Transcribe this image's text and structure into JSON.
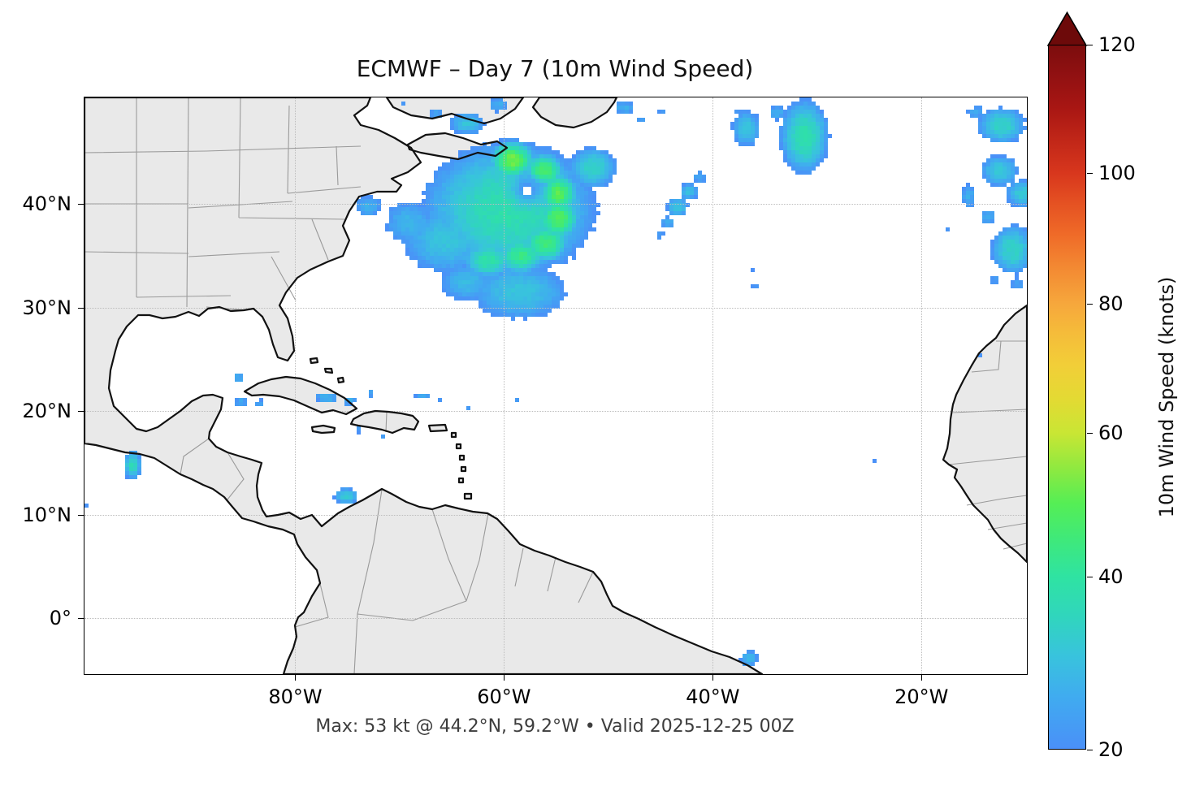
{
  "title": "ECMWF – Day 7 (10m Wind Speed)",
  "caption": "Max: 53 kt @ 44.2°N, 59.2°W • Valid 2025-12-25 00Z",
  "axes": {
    "lon_range": [
      -100.2,
      -9.9
    ],
    "lat_range": [
      -5.4,
      50.3
    ],
    "x_ticks": [
      {
        "label": "80°W",
        "lon": -80
      },
      {
        "label": "60°W",
        "lon": -60
      },
      {
        "label": "40°W",
        "lon": -40
      },
      {
        "label": "20°W",
        "lon": -20
      }
    ],
    "y_ticks": [
      {
        "label": "40°N",
        "lat": 40
      },
      {
        "label": "30°N",
        "lat": 30
      },
      {
        "label": "20°N",
        "lat": 20
      },
      {
        "label": "10°N",
        "lat": 10
      },
      {
        "label": "0°",
        "lat": 0
      }
    ],
    "grid": true
  },
  "map_style": {
    "land_color": "#e9e9e9",
    "coast_color": "#111111",
    "border_color": "#9a9a9a",
    "grid_color": "#bdbdbd",
    "ocean_color": "#ffffff"
  },
  "colorbar": {
    "label": "10m Wind Speed (knots)",
    "min": 20,
    "max": 120,
    "extend": "max",
    "arrow_color": "#6d0a0a",
    "ticks": [
      {
        "label": "20",
        "f": 0.0
      },
      {
        "label": "40",
        "f": 0.245
      },
      {
        "label": "60",
        "f": 0.449
      },
      {
        "label": "80",
        "f": 0.633
      },
      {
        "label": "100",
        "f": 0.818
      },
      {
        "label": "120",
        "f": 1.0
      }
    ],
    "stops": [
      {
        "v": 20,
        "c": "#4a90f8",
        "f": 0.0
      },
      {
        "v": 25,
        "c": "#40abf0",
        "f": 0.073
      },
      {
        "v": 30,
        "c": "#38c4dc",
        "f": 0.134
      },
      {
        "v": 35,
        "c": "#30d6bc",
        "f": 0.19
      },
      {
        "v": 40,
        "c": "#2fe3a2",
        "f": 0.245
      },
      {
        "v": 45,
        "c": "#3fe97a",
        "f": 0.298
      },
      {
        "v": 50,
        "c": "#55ee55",
        "f": 0.349
      },
      {
        "v": 55,
        "c": "#8fe940",
        "f": 0.399
      },
      {
        "v": 60,
        "c": "#c9e634",
        "f": 0.449
      },
      {
        "v": 65,
        "c": "#e3da33",
        "f": 0.497
      },
      {
        "v": 70,
        "c": "#f2ce38",
        "f": 0.546
      },
      {
        "v": 75,
        "c": "#f5bb3a",
        "f": 0.593
      },
      {
        "v": 80,
        "c": "#f6a73c",
        "f": 0.633
      },
      {
        "v": 85,
        "c": "#f38832",
        "f": 0.686
      },
      {
        "v": 90,
        "c": "#ef6a28",
        "f": 0.732
      },
      {
        "v": 95,
        "c": "#e45022",
        "f": 0.778
      },
      {
        "v": 100,
        "c": "#d8371d",
        "f": 0.818
      },
      {
        "v": 105,
        "c": "#c02618",
        "f": 0.867
      },
      {
        "v": 110,
        "c": "#a81613",
        "f": 0.912
      },
      {
        "v": 115,
        "c": "#921112",
        "f": 0.956
      },
      {
        "v": 120,
        "c": "#7c0d0d",
        "f": 1.0
      }
    ]
  },
  "chart_data": {
    "type": "heatmap",
    "variable": "10m Wind Speed",
    "units": "knots",
    "model": "ECMWF",
    "lead": "Day 7",
    "valid": "2025-12-25 00Z",
    "threshold_kt": 20,
    "max_point": {
      "value_kt": 53,
      "lat": 44.2,
      "lon": -59.2
    },
    "features": [
      {
        "lon": -59.5,
        "lat": 39.5,
        "sx": 7.5,
        "sy": 5.8,
        "peak": 38
      },
      {
        "lon": -59.2,
        "lat": 44.2,
        "sx": 1.7,
        "sy": 1.5,
        "peak": 53
      },
      {
        "lon": -56.2,
        "lat": 43.2,
        "sx": 1.6,
        "sy": 1.4,
        "peak": 48
      },
      {
        "lon": -54.8,
        "lat": 41.0,
        "sx": 1.5,
        "sy": 1.6,
        "peak": 50
      },
      {
        "lon": -54.8,
        "lat": 38.6,
        "sx": 1.6,
        "sy": 1.6,
        "peak": 50
      },
      {
        "lon": -56.0,
        "lat": 36.2,
        "sx": 1.8,
        "sy": 1.5,
        "peak": 46
      },
      {
        "lon": -58.4,
        "lat": 35.0,
        "sx": 2.0,
        "sy": 1.5,
        "peak": 43
      },
      {
        "lon": -61.5,
        "lat": 34.6,
        "sx": 2.2,
        "sy": 1.6,
        "peak": 39
      },
      {
        "lon": -65.5,
        "lat": 36.5,
        "sx": 4.5,
        "sy": 3.5,
        "peak": 30
      },
      {
        "lon": -69.0,
        "lat": 38.2,
        "sx": 3.0,
        "sy": 2.6,
        "peak": 27
      },
      {
        "lon": -73.0,
        "lat": 39.8,
        "sx": 1.6,
        "sy": 1.4,
        "peak": 26
      },
      {
        "lon": -63.5,
        "lat": 32.5,
        "sx": 3.0,
        "sy": 2.2,
        "peak": 28
      },
      {
        "lon": -58.5,
        "lat": 31.5,
        "sx": 5.0,
        "sy": 2.9,
        "peak": 30
      },
      {
        "lon": -51.5,
        "lat": 43.5,
        "sx": 2.2,
        "sy": 1.9,
        "peak": 34
      },
      {
        "lon": -57.8,
        "lat": 41.3,
        "sx": 1.05,
        "sy": 1.0,
        "peak": 14,
        "neg": true
      },
      {
        "lon": -57.8,
        "lat": 41.3,
        "sx": 0.3,
        "sy": 0.3,
        "peak": 9,
        "neg": true
      },
      {
        "lon": -63.5,
        "lat": 47.8,
        "sx": 1.8,
        "sy": 1.2,
        "peak": 30
      },
      {
        "lon": -66.5,
        "lat": 48.8,
        "sx": 1.0,
        "sy": 0.8,
        "peak": 24
      },
      {
        "lon": -60.5,
        "lat": 49.6,
        "sx": 1.2,
        "sy": 0.9,
        "peak": 26
      },
      {
        "lon": -69.5,
        "lat": 49.6,
        "sx": 0.5,
        "sy": 0.5,
        "peak": 22
      },
      {
        "lon": -48.5,
        "lat": 49.3,
        "sx": 1.3,
        "sy": 0.8,
        "peak": 26
      },
      {
        "lon": -46.8,
        "lat": 48.2,
        "sx": 0.7,
        "sy": 0.6,
        "peak": 23
      },
      {
        "lon": -44.9,
        "lat": 48.9,
        "sx": 0.6,
        "sy": 0.5,
        "peak": 22
      },
      {
        "lon": -43.7,
        "lat": 47.9,
        "sx": 0.5,
        "sy": 0.4,
        "peak": 21
      },
      {
        "lon": -37.6,
        "lat": 48.8,
        "sx": 0.6,
        "sy": 0.5,
        "peak": 23
      },
      {
        "lon": -31.2,
        "lat": 46.5,
        "sx": 2.1,
        "sy": 3.2,
        "peak": 38
      },
      {
        "lon": -33.8,
        "lat": 48.8,
        "sx": 1.1,
        "sy": 0.9,
        "peak": 26
      },
      {
        "lon": -36.8,
        "lat": 47.3,
        "sx": 1.5,
        "sy": 1.9,
        "peak": 30
      },
      {
        "lon": -41.3,
        "lat": 42.6,
        "sx": 0.9,
        "sy": 0.8,
        "peak": 25
      },
      {
        "lon": -42.3,
        "lat": 41.2,
        "sx": 1.0,
        "sy": 0.9,
        "peak": 29
      },
      {
        "lon": -43.4,
        "lat": 39.7,
        "sx": 1.1,
        "sy": 1.0,
        "peak": 31
      },
      {
        "lon": -44.3,
        "lat": 38.2,
        "sx": 0.9,
        "sy": 0.8,
        "peak": 26
      },
      {
        "lon": -45.0,
        "lat": 37.0,
        "sx": 0.7,
        "sy": 0.6,
        "peak": 23
      },
      {
        "lon": -36.3,
        "lat": 33.5,
        "sx": 0.5,
        "sy": 0.5,
        "peak": 22
      },
      {
        "lon": -35.9,
        "lat": 32.0,
        "sx": 0.5,
        "sy": 0.5,
        "peak": 23
      },
      {
        "lon": -30.3,
        "lat": 40.1,
        "sx": 0.4,
        "sy": 0.4,
        "peak": 21
      },
      {
        "lon": -12.3,
        "lat": 47.6,
        "sx": 2.2,
        "sy": 1.7,
        "peak": 34
      },
      {
        "lon": -14.8,
        "lat": 48.9,
        "sx": 1.2,
        "sy": 0.8,
        "peak": 25
      },
      {
        "lon": -12.5,
        "lat": 43.2,
        "sx": 1.9,
        "sy": 1.6,
        "peak": 31
      },
      {
        "lon": -10.4,
        "lat": 41.0,
        "sx": 1.6,
        "sy": 1.4,
        "peak": 31
      },
      {
        "lon": -15.5,
        "lat": 40.8,
        "sx": 0.9,
        "sy": 1.5,
        "peak": 26
      },
      {
        "lon": -11.3,
        "lat": 35.6,
        "sx": 2.0,
        "sy": 2.3,
        "peak": 34
      },
      {
        "lon": -13.6,
        "lat": 38.8,
        "sx": 1.0,
        "sy": 1.0,
        "peak": 26
      },
      {
        "lon": -17.5,
        "lat": 37.5,
        "sx": 0.5,
        "sy": 0.5,
        "peak": 22
      },
      {
        "lon": -13.0,
        "lat": 32.7,
        "sx": 0.8,
        "sy": 0.8,
        "peak": 23
      },
      {
        "lon": -10.8,
        "lat": 32.3,
        "sx": 0.9,
        "sy": 0.9,
        "peak": 24
      },
      {
        "lon": -14.4,
        "lat": 25.5,
        "sx": 0.35,
        "sy": 0.35,
        "peak": 21
      },
      {
        "lon": -85.5,
        "lat": 23.2,
        "sx": 0.7,
        "sy": 0.7,
        "peak": 26
      },
      {
        "lon": -85.2,
        "lat": 20.9,
        "sx": 0.9,
        "sy": 0.7,
        "peak": 25
      },
      {
        "lon": -83.4,
        "lat": 20.7,
        "sx": 0.6,
        "sy": 0.6,
        "peak": 24
      },
      {
        "lon": -77.0,
        "lat": 21.3,
        "sx": 1.3,
        "sy": 0.7,
        "peak": 27
      },
      {
        "lon": -74.8,
        "lat": 21.0,
        "sx": 0.9,
        "sy": 0.6,
        "peak": 26
      },
      {
        "lon": -72.8,
        "lat": 21.7,
        "sx": 0.6,
        "sy": 0.6,
        "peak": 24
      },
      {
        "lon": -67.8,
        "lat": 21.5,
        "sx": 1.0,
        "sy": 0.5,
        "peak": 25
      },
      {
        "lon": -66.0,
        "lat": 21.2,
        "sx": 0.5,
        "sy": 0.5,
        "peak": 23
      },
      {
        "lon": -74.0,
        "lat": 18.2,
        "sx": 0.6,
        "sy": 0.6,
        "peak": 23
      },
      {
        "lon": -71.6,
        "lat": 17.4,
        "sx": 0.5,
        "sy": 0.5,
        "peak": 23
      },
      {
        "lon": -63.5,
        "lat": 20.3,
        "sx": 0.4,
        "sy": 0.4,
        "peak": 22
      },
      {
        "lon": -61.2,
        "lat": 20.5,
        "sx": 0.4,
        "sy": 0.4,
        "peak": 21
      },
      {
        "lon": -58.8,
        "lat": 21.2,
        "sx": 0.5,
        "sy": 0.5,
        "peak": 22
      },
      {
        "lon": -56.9,
        "lat": 21.0,
        "sx": 0.4,
        "sy": 0.4,
        "peak": 21
      },
      {
        "lon": -75.1,
        "lat": 11.8,
        "sx": 1.2,
        "sy": 0.8,
        "peak": 32
      },
      {
        "lon": -95.6,
        "lat": 14.8,
        "sx": 0.8,
        "sy": 1.3,
        "peak": 36
      },
      {
        "lon": -100.0,
        "lat": 11.0,
        "sx": 0.4,
        "sy": 0.4,
        "peak": 22
      },
      {
        "lon": -36.5,
        "lat": -3.9,
        "sx": 1.0,
        "sy": 0.9,
        "peak": 28
      },
      {
        "lon": -41.0,
        "lat": -2.0,
        "sx": 0.4,
        "sy": 0.4,
        "peak": 21
      },
      {
        "lon": -24.6,
        "lat": 15.3,
        "sx": 0.4,
        "sy": 0.4,
        "peak": 21
      }
    ]
  }
}
